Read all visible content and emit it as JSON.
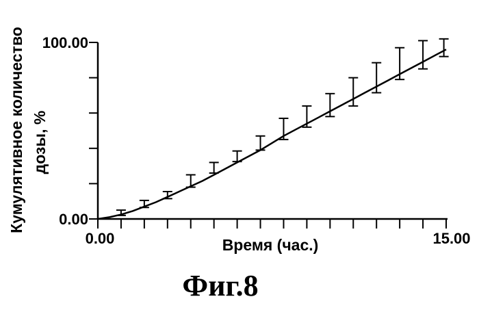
{
  "chart_data": {
    "type": "line",
    "title": "",
    "xlabel": "Время (час.)",
    "ylabel_line1": "Кумулятивное количество",
    "ylabel_line2": "дозы, %",
    "xlim": [
      0,
      15
    ],
    "ylim": [
      0,
      100
    ],
    "x_tick_labels": [
      "0.00",
      "15.00"
    ],
    "y_tick_labels": [
      "0.00",
      "100.00"
    ],
    "x_minor_ticks": [
      1,
      2,
      3,
      4,
      5,
      6,
      7,
      8,
      9,
      10,
      11,
      12,
      13,
      14
    ],
    "y_minor_ticks": [
      20,
      40,
      60,
      80
    ],
    "grid": false,
    "legend": "none",
    "curve": {
      "x": [
        0,
        0.5,
        1,
        1.5,
        2,
        2.5,
        3,
        3.5,
        4,
        4.5,
        5,
        5.5,
        6,
        6.5,
        7,
        7.5,
        8,
        8.5,
        9,
        9.5,
        10,
        10.5,
        11,
        11.5,
        12,
        12.5,
        13,
        13.5,
        14,
        14.5,
        15
      ],
      "y": [
        0,
        1,
        2.5,
        4.5,
        7,
        9.5,
        12.5,
        15.5,
        18.5,
        21.5,
        25,
        28.5,
        32,
        35.5,
        39,
        43,
        47,
        50.5,
        54,
        57.5,
        61,
        64.5,
        68,
        71.5,
        75,
        78.5,
        82,
        85.5,
        89,
        92.5,
        96
      ]
    },
    "points": {
      "x": [
        1.0,
        2.0,
        3.0,
        4.0,
        5.0,
        6.0,
        7.0,
        8.0,
        9.0,
        10.0,
        11.0,
        12.0,
        13.0,
        14.0,
        14.9
      ],
      "y": [
        3.5,
        8.5,
        13.5,
        21.5,
        29,
        35.5,
        43,
        51,
        58,
        64.5,
        72,
        80,
        88,
        93,
        97
      ],
      "err": [
        1.5,
        2,
        2,
        3.5,
        3,
        3,
        4,
        6,
        6,
        6.5,
        8,
        8.5,
        9,
        8,
        5
      ]
    }
  },
  "figure": {
    "caption": "Фиг.8"
  }
}
